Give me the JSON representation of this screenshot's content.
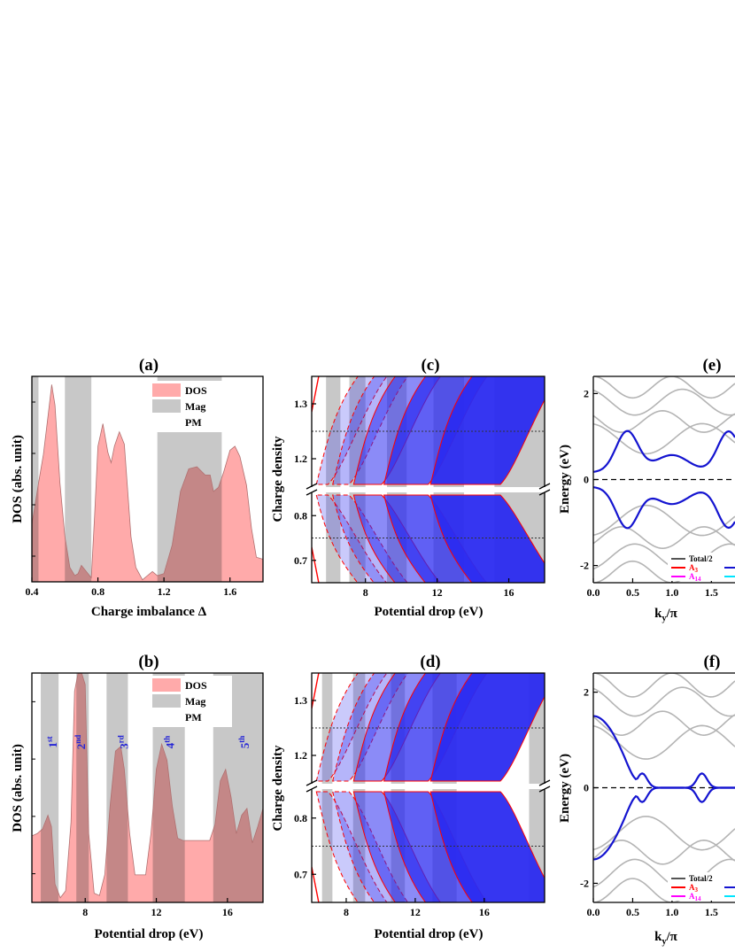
{
  "chart_data": [
    {
      "panel": "(a)",
      "type": "area",
      "xlabel": "Charge imbalance Δ",
      "ylabel": "DOS (abs. unit)",
      "xlim": [
        0.4,
        1.8
      ],
      "xticks": [
        "0.4",
        "0.8",
        "1.2",
        "1.6"
      ],
      "legend": [
        "DOS",
        "Mag",
        "PM"
      ],
      "legend_position": "top-right",
      "mag_bands": [
        [
          0.4,
          0.44
        ],
        [
          0.6,
          0.76
        ],
        [
          1.16,
          1.55
        ]
      ],
      "dos_curve": {
        "x": [
          0.4,
          0.44,
          0.47,
          0.5,
          0.52,
          0.54,
          0.57,
          0.6,
          0.63,
          0.66,
          0.68,
          0.7,
          0.72,
          0.74,
          0.76,
          0.78,
          0.8,
          0.83,
          0.86,
          0.88,
          0.9,
          0.93,
          0.96,
          0.98,
          1.0,
          1.03,
          1.07,
          1.1,
          1.13,
          1.16,
          1.2,
          1.25,
          1.3,
          1.35,
          1.4,
          1.45,
          1.48,
          1.5,
          1.53,
          1.56,
          1.6,
          1.63,
          1.66,
          1.7,
          1.73,
          1.76,
          1.8
        ],
        "y": [
          0.28,
          0.48,
          0.62,
          0.82,
          0.96,
          0.86,
          0.48,
          0.22,
          0.07,
          0.03,
          0.04,
          0.08,
          0.06,
          0.04,
          0.02,
          0.32,
          0.66,
          0.77,
          0.63,
          0.58,
          0.66,
          0.73,
          0.67,
          0.45,
          0.22,
          0.07,
          0.01,
          0.03,
          0.05,
          0.03,
          0.04,
          0.18,
          0.44,
          0.55,
          0.56,
          0.52,
          0.52,
          0.44,
          0.46,
          0.53,
          0.64,
          0.66,
          0.61,
          0.47,
          0.26,
          0.12,
          0.11
        ]
      }
    },
    {
      "panel": "(b)",
      "type": "area",
      "xlabel": "Potential drop (eV)",
      "ylabel": "DOS (abs. unit)",
      "xlim": [
        5,
        18
      ],
      "xticks": [
        "8",
        "12",
        "16"
      ],
      "legend": [
        "DOS",
        "Mag",
        "PM"
      ],
      "legend_position": "top-right",
      "annotations": [
        {
          "base": "1",
          "sup": "st",
          "x": 6.2
        },
        {
          "base": "2",
          "sup": "nd",
          "x": 7.8
        },
        {
          "base": "3",
          "sup": "rd",
          "x": 10.2
        },
        {
          "base": "4",
          "sup": "th",
          "x": 12.8
        },
        {
          "base": "5",
          "sup": "th",
          "x": 17.0
        }
      ],
      "mag_bands": [
        [
          5.5,
          6.5
        ],
        [
          7.5,
          8.2
        ],
        [
          9.2,
          10.4
        ],
        [
          11.8,
          13.6
        ],
        [
          15.2,
          18.0
        ]
      ],
      "dos_curve": {
        "x": [
          5.0,
          5.3,
          5.6,
          5.9,
          6.1,
          6.3,
          6.6,
          6.9,
          7.2,
          7.4,
          7.6,
          7.8,
          8.0,
          8.2,
          8.5,
          8.8,
          9.1,
          9.4,
          9.7,
          10.0,
          10.2,
          10.5,
          10.8,
          11.1,
          11.4,
          11.7,
          12.0,
          12.3,
          12.6,
          12.9,
          13.2,
          13.5,
          14.0,
          14.5,
          15.0,
          15.3,
          15.6,
          15.9,
          16.2,
          16.5,
          16.8,
          17.1,
          17.4,
          17.7,
          18.0
        ],
        "y": [
          0.29,
          0.3,
          0.32,
          0.38,
          0.33,
          0.08,
          0.02,
          0.05,
          0.35,
          0.92,
          1.0,
          1.0,
          0.95,
          0.3,
          0.04,
          0.03,
          0.12,
          0.42,
          0.66,
          0.68,
          0.58,
          0.3,
          0.12,
          0.12,
          0.12,
          0.3,
          0.58,
          0.69,
          0.62,
          0.42,
          0.28,
          0.27,
          0.27,
          0.27,
          0.27,
          0.34,
          0.53,
          0.58,
          0.46,
          0.3,
          0.38,
          0.41,
          0.26,
          0.33,
          0.41
        ]
      }
    },
    {
      "panel": "(c)",
      "type": "area",
      "xlabel": "Potential drop (eV)",
      "ylabel": "Charge density",
      "xlim": [
        5,
        18
      ],
      "xticks": [
        "8",
        "12",
        "16"
      ],
      "ylim_upper": [
        1.15,
        1.35
      ],
      "ylim_lower": [
        0.65,
        0.85
      ],
      "yticks": [
        "0.7",
        "0.8",
        "1.2",
        "1.3"
      ],
      "reference_lines": [
        1.25,
        0.75
      ],
      "axis_break": true
    },
    {
      "panel": "(d)",
      "type": "area",
      "xlabel": "Potential drop (eV)",
      "ylabel": "Charge density",
      "xlim": [
        6,
        19.5
      ],
      "xticks": [
        "8",
        "12",
        "16"
      ],
      "ylim_upper": [
        1.15,
        1.35
      ],
      "ylim_lower": [
        0.65,
        0.85
      ],
      "yticks": [
        "0.7",
        "0.8",
        "1.2",
        "1.3"
      ],
      "reference_lines": [
        1.25,
        0.75
      ],
      "axis_break": true
    },
    {
      "panel": "(e)",
      "type": "line",
      "xlabel_base": "k",
      "xlabel_sub": "y",
      "xlabel_tail": "/π",
      "ylabel": "Energy (eV)",
      "xlim": [
        0,
        1.8
      ],
      "ylim": [
        -2.4,
        2.4
      ],
      "xticks": [
        "0.0",
        "0.5",
        "1.0",
        "1.5"
      ],
      "yticks": [
        "-2",
        "0",
        "2"
      ],
      "reference_lines": [
        0
      ],
      "legend": [
        {
          "name": "Total/2",
          "color": "#555555"
        },
        {
          "name": "A",
          "sub": "3",
          "color": "#ff0000"
        },
        {
          "name": "A",
          "sub": "14",
          "color": "#ff00ff"
        }
      ],
      "legend_position": "bottom-right"
    },
    {
      "panel": "(f)",
      "type": "line",
      "xlabel_base": "k",
      "xlabel_sub": "y",
      "xlabel_tail": "/π",
      "ylabel": "Energy (eV)",
      "xlim": [
        0,
        1.8
      ],
      "ylim": [
        -2.4,
        2.4
      ],
      "xticks": [
        "0.0",
        "0.5",
        "1.0",
        "1.5"
      ],
      "yticks": [
        "-2",
        "0",
        "2"
      ],
      "reference_lines": [
        0
      ],
      "legend": [
        {
          "name": "Total/2",
          "color": "#555555"
        },
        {
          "name": "A",
          "sub": "3",
          "color": "#ff0000"
        },
        {
          "name": "A",
          "sub": "14",
          "color": "#ff00ff"
        }
      ],
      "legend_position": "bottom-right"
    }
  ],
  "colors": {
    "dos_fill": "#ffaaaa",
    "dos_in_mag": "#c48787",
    "mag": "#c8c8c8",
    "density_dark": "#2b2bf0",
    "density_light": "#aaaaf0",
    "red": "#ff0000",
    "band_blue": "#1414d0",
    "band_gray": "#b4b4b4"
  }
}
